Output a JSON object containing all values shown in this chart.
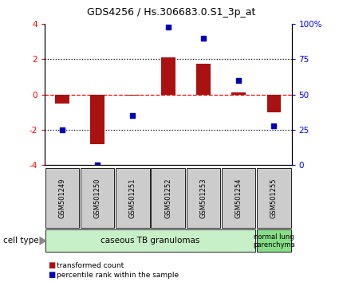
{
  "title": "GDS4256 / Hs.306683.0.S1_3p_at",
  "samples": [
    "GSM501249",
    "GSM501250",
    "GSM501251",
    "GSM501252",
    "GSM501253",
    "GSM501254",
    "GSM501255"
  ],
  "transformed_counts": [
    -0.5,
    -2.8,
    -0.05,
    2.1,
    1.75,
    0.1,
    -1.0
  ],
  "percentile_ranks": [
    25,
    0,
    35,
    98,
    90,
    60,
    28
  ],
  "ylim_left": [
    -4,
    4
  ],
  "ylim_right": [
    0,
    100
  ],
  "yticks_left": [
    -4,
    -2,
    0,
    2,
    4
  ],
  "yticks_right": [
    0,
    25,
    50,
    75,
    100
  ],
  "ytick_labels_right": [
    "0",
    "25",
    "50",
    "75",
    "100%"
  ],
  "hlines_dotted": [
    -2,
    2
  ],
  "hline_dashed": 0,
  "bar_color": "#AA1111",
  "scatter_color": "#0000BB",
  "bar_width": 0.4,
  "group0_label": "caseous TB granulomas",
  "group0_color": "#c8f0c8",
  "group0_samples": [
    0,
    1,
    2,
    3,
    4,
    5
  ],
  "group1_label": "normal lung\nparenchyma",
  "group1_color": "#88dd88",
  "group1_samples": [
    6
  ],
  "cell_type_label": "cell type",
  "legend_red_label": "transformed count",
  "legend_blue_label": "percentile rank within the sample",
  "box_color": "#cccccc",
  "fig_bg": "#ffffff"
}
